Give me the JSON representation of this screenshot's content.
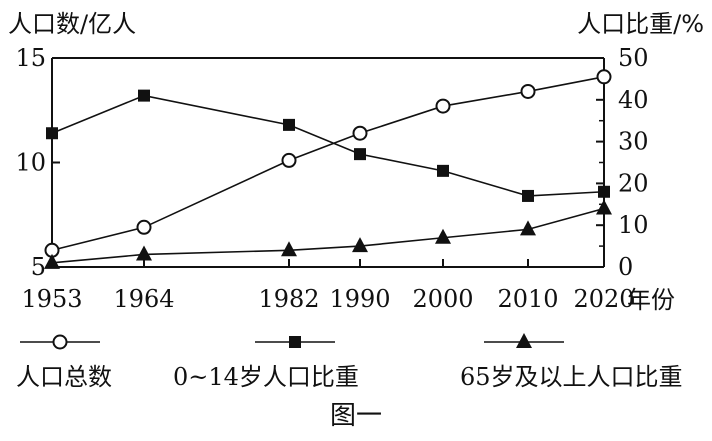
{
  "chart_data": {
    "type": "line",
    "title": "",
    "caption": "图一",
    "x": [
      1953,
      1964,
      1982,
      1990,
      2000,
      2010,
      2020
    ],
    "xlabel": "年份",
    "y_left": {
      "label": "人口数/亿人",
      "lim": [
        5,
        15
      ],
      "ticks": [
        5,
        10,
        15
      ]
    },
    "y_right": {
      "label": "人口比重/%",
      "lim": [
        0,
        50
      ],
      "ticks": [
        0,
        10,
        20,
        30,
        40,
        50
      ]
    },
    "grid": false,
    "legend_position": "bottom",
    "series": [
      {
        "name": "人口总数",
        "axis": "left",
        "marker": "circle-open",
        "values": [
          5.8,
          6.9,
          10.1,
          11.4,
          12.7,
          13.4,
          14.1
        ]
      },
      {
        "name": "0~14岁人口比重",
        "axis": "right",
        "marker": "square-filled",
        "values": [
          32,
          41,
          34,
          27,
          23,
          17,
          18
        ]
      },
      {
        "name": "65岁及以上人口比重",
        "axis": "right",
        "marker": "triangle-filled",
        "values": [
          1,
          3,
          4,
          5,
          7,
          9,
          14
        ]
      }
    ],
    "colors": {
      "line": "#111111",
      "marker_fill": "#111111",
      "background": "#ffffff"
    }
  }
}
